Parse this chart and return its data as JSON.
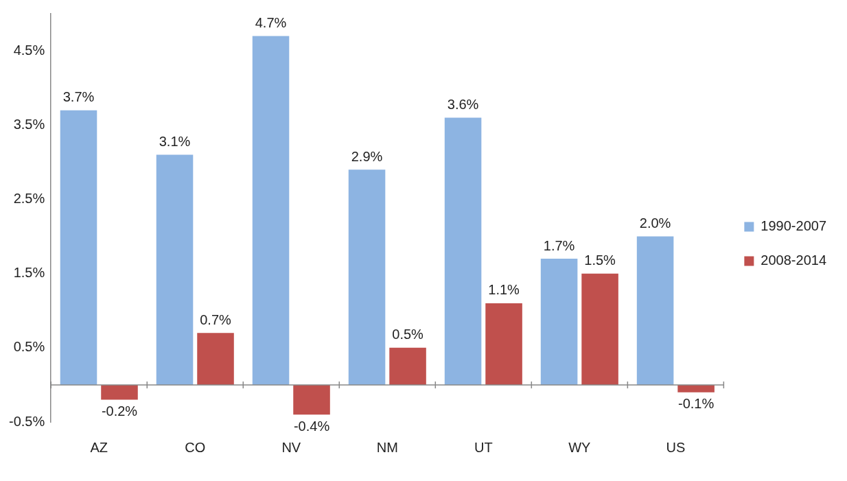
{
  "chart_data": {
    "type": "bar",
    "categories": [
      "AZ",
      "CO",
      "NV",
      "NM",
      "UT",
      "WY",
      "US"
    ],
    "series": [
      {
        "name": "1990-2007",
        "color": "#8db4e2",
        "values": [
          3.7,
          3.1,
          4.7,
          2.9,
          3.6,
          1.7,
          2.0
        ],
        "value_labels": [
          "3.7%",
          "3.1%",
          "4.7%",
          "2.9%",
          "3.6%",
          "1.7%",
          "2.0%"
        ]
      },
      {
        "name": "2008-2014",
        "color": "#c0504d",
        "values": [
          -0.2,
          0.7,
          -0.4,
          0.5,
          1.1,
          1.5,
          -0.1
        ],
        "value_labels": [
          "-0.2%",
          "0.7%",
          "-0.4%",
          "0.5%",
          "1.1%",
          "1.5%",
          "-0.1%"
        ]
      }
    ],
    "ylim": [
      -0.5,
      5.0
    ],
    "yticks": [
      {
        "value": -0.5,
        "label": "-0.5%"
      },
      {
        "value": 0.5,
        "label": "0.5%"
      },
      {
        "value": 1.5,
        "label": "1.5%"
      },
      {
        "value": 2.5,
        "label": "2.5%"
      },
      {
        "value": 3.5,
        "label": "3.5%"
      },
      {
        "value": 4.5,
        "label": "4.5%"
      }
    ],
    "grid": false,
    "legend": "right"
  }
}
